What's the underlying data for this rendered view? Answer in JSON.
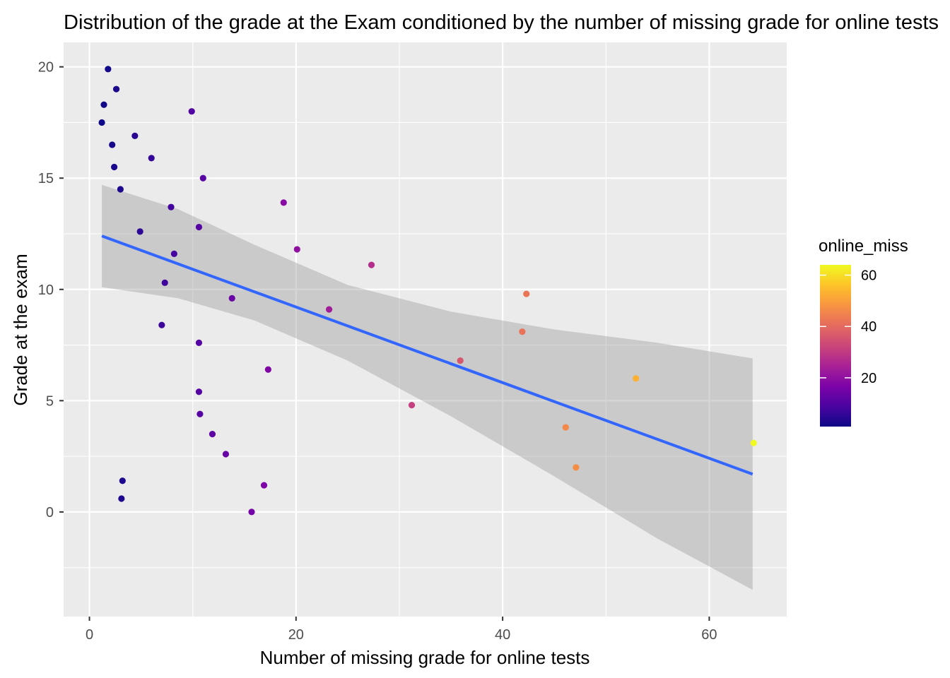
{
  "chart_data": {
    "type": "scatter",
    "title": "Distribution of the grade at the Exam conditioned by the number of missing grade for online tests",
    "xlabel": "Number of missing grade for online tests",
    "ylabel": "Grade at the exam",
    "xlim": [
      -2.5,
      67.5
    ],
    "ylim": [
      -4.7,
      21.1
    ],
    "x_ticks": [
      0,
      20,
      40,
      60
    ],
    "y_ticks": [
      0,
      5,
      10,
      15,
      20
    ],
    "grid": true,
    "panel_background": "#ebebeb",
    "legend": {
      "title": "online_miss",
      "placement": "right",
      "ticks": [
        20,
        40,
        60
      ],
      "range": [
        1,
        64
      ],
      "colormap": "plasma"
    },
    "points": [
      {
        "x": 1.8,
        "y": 19.9
      },
      {
        "x": 2.6,
        "y": 19.0
      },
      {
        "x": 1.4,
        "y": 18.3
      },
      {
        "x": 1.2,
        "y": 17.5
      },
      {
        "x": 2.2,
        "y": 16.5
      },
      {
        "x": 2.4,
        "y": 15.5
      },
      {
        "x": 3.0,
        "y": 14.5
      },
      {
        "x": 3.2,
        "y": 1.4
      },
      {
        "x": 3.1,
        "y": 0.6
      },
      {
        "x": 4.4,
        "y": 16.9
      },
      {
        "x": 4.9,
        "y": 12.6
      },
      {
        "x": 6.0,
        "y": 15.9
      },
      {
        "x": 7.0,
        "y": 8.4
      },
      {
        "x": 7.3,
        "y": 10.3
      },
      {
        "x": 7.9,
        "y": 13.7
      },
      {
        "x": 8.2,
        "y": 11.6
      },
      {
        "x": 9.9,
        "y": 18.0
      },
      {
        "x": 10.6,
        "y": 12.8
      },
      {
        "x": 10.6,
        "y": 7.6
      },
      {
        "x": 10.6,
        "y": 5.4
      },
      {
        "x": 10.7,
        "y": 4.4
      },
      {
        "x": 11.0,
        "y": 15.0
      },
      {
        "x": 11.9,
        "y": 3.5
      },
      {
        "x": 13.2,
        "y": 2.6
      },
      {
        "x": 13.8,
        "y": 9.6
      },
      {
        "x": 15.7,
        "y": 0.0
      },
      {
        "x": 16.9,
        "y": 1.2
      },
      {
        "x": 17.3,
        "y": 6.4
      },
      {
        "x": 18.8,
        "y": 13.9
      },
      {
        "x": 20.1,
        "y": 11.8
      },
      {
        "x": 23.2,
        "y": 9.1
      },
      {
        "x": 27.3,
        "y": 11.1
      },
      {
        "x": 31.2,
        "y": 4.8
      },
      {
        "x": 35.9,
        "y": 6.8
      },
      {
        "x": 41.9,
        "y": 8.1
      },
      {
        "x": 42.3,
        "y": 9.8
      },
      {
        "x": 46.1,
        "y": 3.8
      },
      {
        "x": 47.1,
        "y": 2.0
      },
      {
        "x": 52.9,
        "y": 6.0
      },
      {
        "x": 64.3,
        "y": 3.1
      }
    ],
    "fit": {
      "method": "linear",
      "color": "#3366ff",
      "band_color": "#999999",
      "x": [
        1.2,
        64.2
      ],
      "y": [
        12.4,
        1.7
      ],
      "lower": [
        10.1,
        -3.5
      ],
      "upper": [
        14.7,
        6.9
      ],
      "band_x": [
        1.2,
        8.6,
        16.0,
        25.0,
        35.0,
        45.0,
        55.0,
        64.2
      ],
      "band_lower": [
        10.1,
        9.6,
        8.6,
        6.8,
        4.3,
        1.6,
        -1.2,
        -3.5
      ],
      "band_upper": [
        14.7,
        13.6,
        12.0,
        10.2,
        9.0,
        8.2,
        7.6,
        6.9
      ]
    }
  }
}
